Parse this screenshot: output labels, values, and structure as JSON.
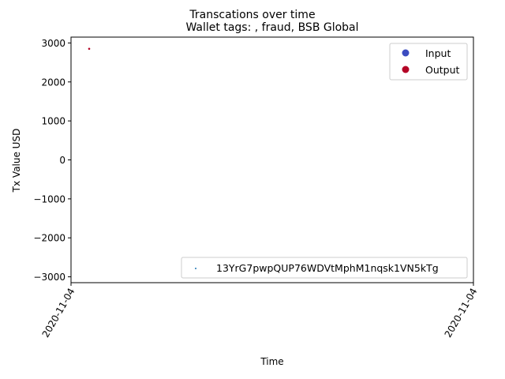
{
  "chart_data": {
    "type": "scatter",
    "suptitle": "Transcations over time",
    "title": "Wallet tags: , fraud, BSB Global",
    "xlabel": "Time",
    "ylabel": "Tx Value USD",
    "x_tick_labels": [
      "2020-11-04",
      "2020-11-04"
    ],
    "y_ticks": [
      3000,
      2000,
      1000,
      0,
      -1000,
      -2000,
      -3000
    ],
    "y_tick_labels": [
      "3000",
      "2000",
      "1000",
      "0",
      "−1000",
      "−2000",
      "−3000"
    ],
    "ylim": [
      -3150,
      3150
    ],
    "grid": false,
    "legends": [
      {
        "placement": "upper right",
        "entries": [
          {
            "label": "Input",
            "color": "#3b4cc0",
            "marker": "circle"
          },
          {
            "label": "Output",
            "color": "#b40426",
            "marker": "circle"
          }
        ]
      },
      {
        "placement": "lower right",
        "entries": [
          {
            "label": "13YrG7pwpQUP76WDVtMphM1nqsk1VN5kTg",
            "color": "#1f77b4",
            "marker": "point"
          }
        ]
      }
    ],
    "series": [
      {
        "type": "Output",
        "color": "#b40426",
        "points": [
          {
            "x": "2020-11-04",
            "y": 2850
          }
        ]
      }
    ]
  }
}
